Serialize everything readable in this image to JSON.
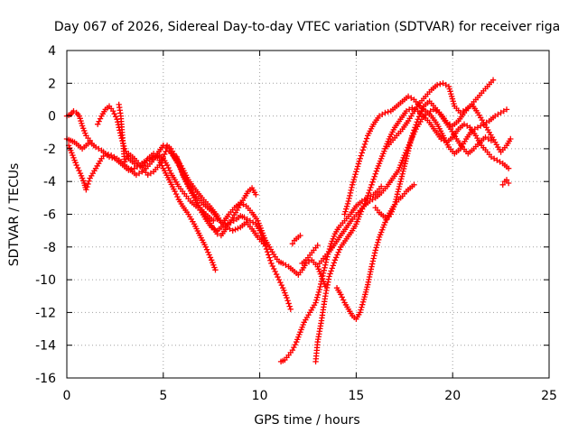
{
  "chart_data": {
    "type": "scatter",
    "title": "Day 067 of 2026, Sidereal Day-to-day VTEC variation (SDTVAR) for receiver riga",
    "xlabel": "GPS time / hours",
    "ylabel": "SDTVAR / TECUs",
    "xlim": [
      0,
      25
    ],
    "ylim": [
      -16,
      4
    ],
    "xticks": [
      0,
      5,
      10,
      15,
      20,
      25
    ],
    "yticks": [
      -16,
      -14,
      -12,
      -10,
      -8,
      -6,
      -4,
      -2,
      0,
      2,
      4
    ],
    "grid": true,
    "marker": "plus",
    "color": "#ff0000",
    "series": [
      {
        "x": [
          0.0,
          0.2,
          0.35,
          0.5,
          0.65,
          0.8,
          1.0,
          1.2
        ],
        "y": [
          0.0,
          0.1,
          0.3,
          0.2,
          0.0,
          -0.6,
          -1.2,
          -1.5
        ]
      },
      {
        "x": [
          0.0,
          0.2,
          0.4,
          0.6,
          0.8,
          1.0,
          1.2,
          1.5,
          1.8,
          2.0,
          2.2,
          2.5,
          2.8,
          3.0,
          3.2,
          3.5,
          3.8,
          4.0,
          4.3,
          4.6,
          4.8,
          5.0,
          5.2,
          5.4,
          5.6,
          5.8,
          6.0,
          6.2,
          6.4,
          6.6,
          6.8,
          7.0,
          7.2,
          7.5,
          7.8,
          8.0,
          8.2,
          8.5,
          8.8,
          9.0,
          9.2,
          9.5,
          9.8,
          10.0,
          10.2,
          10.4,
          10.6,
          10.8,
          11.0,
          11.2,
          11.4,
          11.6
        ],
        "y": [
          -1.4,
          -1.5,
          -1.6,
          -1.8,
          -2.0,
          -1.8,
          -1.6,
          -1.9,
          -2.1,
          -2.3,
          -2.5,
          -2.6,
          -2.9,
          -3.1,
          -3.3,
          -3.2,
          -3.0,
          -2.8,
          -2.6,
          -2.5,
          -2.4,
          -2.6,
          -3.0,
          -3.5,
          -3.9,
          -4.3,
          -4.6,
          -4.9,
          -5.2,
          -5.4,
          -5.6,
          -5.9,
          -6.3,
          -6.8,
          -7.0,
          -6.8,
          -6.6,
          -6.5,
          -6.3,
          -6.1,
          -6.2,
          -6.4,
          -6.6,
          -7.0,
          -7.6,
          -8.3,
          -9.0,
          -9.5,
          -10.0,
          -10.5,
          -11.1,
          -11.8
        ]
      },
      {
        "x": [
          0.1,
          0.3,
          0.5,
          0.7,
          0.9,
          1.0,
          1.2,
          1.5,
          1.8,
          2.0,
          2.3,
          2.6,
          2.8,
          3.0,
          3.3,
          3.6,
          3.9,
          4.1,
          4.4,
          4.7,
          5.0,
          5.3,
          5.6,
          6.0,
          6.3,
          6.6,
          7.0,
          7.3,
          7.6,
          7.8,
          8.1,
          8.4,
          8.7,
          9.0,
          9.3,
          9.6,
          9.9,
          10.1,
          10.3,
          10.5,
          10.8,
          11.0,
          11.2,
          11.5,
          11.8,
          12.0,
          12.2,
          12.4,
          12.7,
          13.0,
          13.2,
          13.4
        ],
        "y": [
          -1.8,
          -2.4,
          -3.0,
          -3.5,
          -4.1,
          -4.5,
          -3.8,
          -3.2,
          -2.6,
          -2.3,
          -2.4,
          -2.6,
          -2.8,
          -3.0,
          -3.3,
          -3.6,
          -3.4,
          -3.2,
          -2.8,
          -2.3,
          -1.8,
          -2.0,
          -2.6,
          -3.4,
          -4.2,
          -4.8,
          -5.3,
          -5.6,
          -5.9,
          -6.3,
          -6.5,
          -6.0,
          -5.6,
          -5.3,
          -5.5,
          -5.9,
          -6.4,
          -7.0,
          -7.6,
          -8.0,
          -8.6,
          -8.9,
          -9.0,
          -9.2,
          -9.5,
          -9.7,
          -9.4,
          -9.0,
          -8.8,
          -9.2,
          -9.8,
          -10.4
        ]
      },
      {
        "x": [
          1.6,
          1.8,
          2.0,
          2.2,
          2.4,
          2.6,
          2.8,
          3.0,
          3.2,
          3.5,
          3.8,
          4.0,
          4.2,
          4.5,
          4.8,
          5.0,
          5.3,
          5.6,
          5.8,
          6.0,
          6.3,
          6.6,
          6.9,
          7.2,
          7.5,
          7.7
        ],
        "y": [
          -0.5,
          0.0,
          0.4,
          0.6,
          0.3,
          -0.2,
          -1.2,
          -2.0,
          -2.6,
          -2.9,
          -3.1,
          -3.0,
          -2.6,
          -2.3,
          -2.7,
          -3.2,
          -3.9,
          -4.6,
          -5.1,
          -5.5,
          -6.0,
          -6.6,
          -7.3,
          -8.0,
          -8.8,
          -9.4
        ]
      },
      {
        "x": [
          2.7,
          2.8,
          2.9,
          3.0,
          3.2,
          3.5,
          3.8,
          4.0,
          4.2,
          4.5,
          4.8,
          5.0,
          5.2,
          5.5,
          5.8,
          6.0,
          6.3,
          6.6,
          6.9,
          7.2,
          7.5,
          7.8
        ],
        "y": [
          0.7,
          0.0,
          -1.5,
          -2.8,
          -2.3,
          -2.6,
          -3.0,
          -3.3,
          -3.6,
          -3.4,
          -3.0,
          -2.5,
          -2.0,
          -2.4,
          -2.9,
          -3.6,
          -4.3,
          -5.0,
          -5.6,
          -6.1,
          -6.7,
          -7.2
        ]
      },
      {
        "x": [
          5.0,
          5.2,
          5.4,
          5.7,
          6.0,
          6.3,
          6.6,
          7.0,
          7.4,
          7.8,
          8.0,
          8.3,
          8.6,
          9.0,
          9.3,
          9.6,
          9.9,
          10.2
        ],
        "y": [
          -1.8,
          -1.8,
          -2.0,
          -2.6,
          -3.2,
          -3.9,
          -4.4,
          -5.0,
          -5.5,
          -6.1,
          -6.5,
          -6.8,
          -7.0,
          -6.8,
          -6.5,
          -6.9,
          -7.4,
          -7.8
        ]
      },
      {
        "x": [
          5.7,
          6.0,
          6.3,
          6.6,
          6.9,
          7.2,
          7.4,
          7.6
        ],
        "y": [
          -2.5,
          -3.5,
          -4.3,
          -5.0,
          -5.6,
          -6.0,
          -6.2,
          -6.4
        ]
      },
      {
        "x": [
          8.0,
          8.3,
          8.6,
          8.9,
          9.2,
          9.4,
          9.6,
          9.8
        ],
        "y": [
          -7.3,
          -6.8,
          -6.2,
          -5.6,
          -5.0,
          -4.6,
          -4.4,
          -4.8
        ]
      },
      {
        "x": [
          11.1,
          11.3,
          11.5,
          11.7,
          11.9,
          12.1,
          12.3,
          12.6,
          12.9,
          13.1,
          13.3,
          13.5,
          13.7,
          13.9,
          14.1,
          14.4,
          14.7,
          15.0,
          15.3,
          15.6,
          15.9,
          16.1,
          16.3
        ],
        "y": [
          -15.0,
          -14.9,
          -14.6,
          -14.3,
          -13.8,
          -13.2,
          -12.6,
          -12.0,
          -11.4,
          -10.6,
          -9.6,
          -8.6,
          -7.8,
          -7.2,
          -6.8,
          -6.4,
          -6.0,
          -5.5,
          -5.2,
          -5.0,
          -4.8,
          -4.6,
          -4.3
        ]
      },
      {
        "x": [
          11.7,
          11.8,
          11.9,
          12.0,
          12.1
        ],
        "y": [
          -7.8,
          -7.6,
          -7.5,
          -7.4,
          -7.3
        ]
      },
      {
        "x": [
          12.2,
          12.4,
          12.6,
          12.8,
          13.0
        ],
        "y": [
          -9.0,
          -8.8,
          -8.5,
          -8.2,
          -7.9
        ]
      },
      {
        "x": [
          12.9,
          13.0,
          13.2,
          13.4,
          13.6,
          13.9,
          14.2,
          14.5,
          14.8,
          15.0,
          15.2,
          15.5,
          15.8,
          16.1,
          16.4,
          16.7,
          17.0,
          17.3,
          17.6,
          17.9,
          18.2,
          18.5,
          18.8,
          19.1,
          19.4,
          19.7,
          20.0,
          20.3,
          20.6,
          20.9,
          21.2,
          21.5,
          21.8,
          22.0,
          22.3,
          22.6,
          22.9
        ],
        "y": [
          -15.0,
          -13.8,
          -12.5,
          -11.0,
          -9.8,
          -8.8,
          -8.0,
          -7.5,
          -7.0,
          -6.6,
          -6.0,
          -5.2,
          -4.2,
          -3.2,
          -2.3,
          -1.4,
          -0.7,
          -0.2,
          0.3,
          0.5,
          0.3,
          0.0,
          -0.4,
          -0.9,
          -1.4,
          -1.6,
          -1.3,
          -0.8,
          -0.5,
          -0.7,
          -1.2,
          -1.8,
          -2.2,
          -2.5,
          -2.7,
          -2.9,
          -3.2
        ]
      },
      {
        "x": [
          13.1,
          13.3,
          13.6,
          13.9,
          14.2,
          14.5,
          14.8,
          15.1,
          15.4,
          15.7,
          16.0,
          16.3,
          16.6,
          16.9,
          17.2,
          17.5,
          17.8,
          18.1,
          18.4,
          18.7,
          19.0,
          19.3,
          19.6,
          19.9,
          20.2,
          20.5,
          20.8,
          21.1,
          21.4,
          21.7,
          22.0
        ],
        "y": [
          -9.0,
          -8.7,
          -8.3,
          -7.8,
          -7.3,
          -6.8,
          -6.3,
          -5.9,
          -5.5,
          -5.2,
          -5.0,
          -4.7,
          -4.3,
          -3.8,
          -3.3,
          -2.4,
          -1.6,
          -0.8,
          -0.2,
          0.2,
          0.4,
          0.2,
          -0.3,
          -0.8,
          -1.4,
          -1.9,
          -2.3,
          -2.0,
          -1.6,
          -1.3,
          -1.5
        ]
      },
      {
        "x": [
          14.0,
          14.2,
          14.4,
          14.6,
          14.8,
          15.0,
          15.2,
          15.4,
          15.6,
          15.8,
          16.0,
          16.2,
          16.4,
          16.6,
          16.8,
          17.0,
          17.2,
          17.4,
          17.6,
          17.8,
          18.0
        ],
        "y": [
          -10.5,
          -10.9,
          -11.4,
          -11.8,
          -12.2,
          -12.4,
          -12.0,
          -11.2,
          -10.3,
          -9.2,
          -8.2,
          -7.4,
          -6.8,
          -6.2,
          -5.8,
          -5.4,
          -5.1,
          -4.9,
          -4.6,
          -4.4,
          -4.2
        ]
      },
      {
        "x": [
          14.4,
          14.6,
          14.8,
          15.0,
          15.2,
          15.4,
          15.6,
          15.9,
          16.2,
          16.5,
          16.8,
          17.1,
          17.4,
          17.7,
          18.0,
          18.3,
          18.6,
          18.9,
          19.2,
          19.5,
          19.8,
          20.1,
          20.4,
          20.7,
          21.0,
          21.3,
          21.6,
          21.9,
          22.2,
          22.5,
          22.8
        ],
        "y": [
          -6.0,
          -5.2,
          -4.2,
          -3.4,
          -2.6,
          -1.9,
          -1.2,
          -0.5,
          0.0,
          0.2,
          0.3,
          0.6,
          0.9,
          1.2,
          1.0,
          0.6,
          0.3,
          0.0,
          -0.5,
          -1.2,
          -1.9,
          -2.3,
          -2.0,
          -1.4,
          -0.9,
          -0.7,
          -0.5,
          -0.3,
          0.0,
          0.2,
          0.4
        ]
      },
      {
        "x": [
          16.0,
          16.2,
          16.4,
          16.6,
          16.8,
          17.0,
          17.3,
          17.6,
          17.9,
          18.2,
          18.5,
          18.8,
          19.1,
          19.4,
          19.7,
          20.0,
          20.3,
          20.6,
          20.9,
          21.2,
          21.5,
          21.8,
          22.1
        ],
        "y": [
          -5.6,
          -5.9,
          -6.1,
          -6.3,
          -6.0,
          -5.4,
          -4.0,
          -2.6,
          -1.2,
          -0.2,
          0.6,
          0.9,
          0.5,
          0.1,
          -0.4,
          -0.6,
          -0.3,
          0.2,
          0.6,
          1.0,
          1.4,
          1.8,
          2.2
        ]
      },
      {
        "x": [
          16.5,
          16.8,
          17.1,
          17.4,
          17.7,
          18.0,
          18.3,
          18.6,
          18.9,
          19.2,
          19.5,
          19.8,
          20.1,
          20.4,
          20.7,
          21.0,
          21.3,
          21.6,
          21.9,
          22.2,
          22.5,
          22.8,
          23.0
        ],
        "y": [
          -2.0,
          -1.6,
          -1.2,
          -0.8,
          -0.3,
          0.3,
          0.8,
          1.2,
          1.6,
          1.9,
          2.0,
          1.8,
          0.6,
          0.2,
          0.4,
          0.7,
          0.2,
          -0.4,
          -1.0,
          -1.6,
          -2.2,
          -1.8,
          -1.4
        ]
      },
      {
        "x": [
          22.6,
          22.7,
          22.8,
          22.9
        ],
        "y": [
          -4.2,
          -4.0,
          -3.9,
          -4.1
        ]
      }
    ]
  }
}
